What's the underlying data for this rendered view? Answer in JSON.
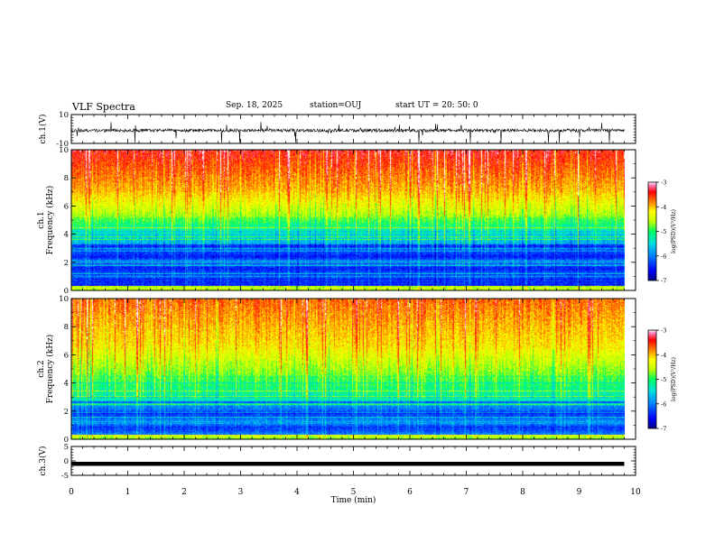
{
  "header": {
    "title": "VLF Spectra",
    "date": "Sep. 18, 2025",
    "station": "station=OUJ",
    "start_ut": "start  UT =   20: 50: 0"
  },
  "chart_data": [
    {
      "type": "line",
      "panel": "ch1-waveform",
      "ylabel": "ch.1(V)",
      "yticks": [
        "10",
        "-10"
      ],
      "ylim": [
        -10,
        10
      ],
      "trace": "noisy waveform centered near -1 V with sparse spikes",
      "xlim": [
        0,
        10
      ]
    },
    {
      "type": "heatmap",
      "panel": "ch1-spectrogram",
      "ylabel_lines": [
        "ch.1",
        "Frequency  (kHz)"
      ],
      "yticks": [
        "0",
        "2",
        "4",
        "6",
        "8",
        "10"
      ],
      "ylim": [
        0,
        10
      ],
      "xlim": [
        0,
        9.8
      ],
      "colorbar": {
        "label": "log(PSD)(V²/Hz)",
        "ticks": [
          "-3",
          "-4",
          "-5",
          "-6",
          "-7"
        ],
        "range": [
          -7,
          -3
        ]
      }
    },
    {
      "type": "heatmap",
      "panel": "ch2-spectrogram",
      "ylabel_lines": [
        "ch.2",
        "Frequency  (kHz)"
      ],
      "yticks": [
        "0",
        "2",
        "4",
        "6",
        "8",
        "10"
      ],
      "ylim": [
        0,
        10
      ],
      "xlim": [
        0,
        9.8
      ],
      "colorbar": {
        "label": "log(PSD)(V²/Hz)",
        "ticks": [
          "-3",
          "-4",
          "-5",
          "-6",
          "-7"
        ],
        "range": [
          -7,
          -3
        ]
      }
    },
    {
      "type": "line",
      "panel": "ch3-waveform",
      "ylabel": "ch.3(V)",
      "yticks": [
        "5",
        "0",
        "-5"
      ],
      "ylim": [
        -5,
        5
      ],
      "constant_value": -1,
      "xlim": [
        0,
        9.8
      ]
    }
  ],
  "xaxis": {
    "label": "Time  (min)",
    "ticks": [
      "0",
      "1",
      "2",
      "3",
      "4",
      "5",
      "6",
      "7",
      "8",
      "9",
      "10"
    ],
    "range": [
      0,
      10
    ]
  },
  "colors": {
    "scale": [
      "#000080",
      "#0000ff",
      "#0080ff",
      "#00e0e0",
      "#00ff60",
      "#c0ff00",
      "#ffff00",
      "#ff8000",
      "#ff0000",
      "#ff40a0",
      "#ffffff"
    ]
  }
}
